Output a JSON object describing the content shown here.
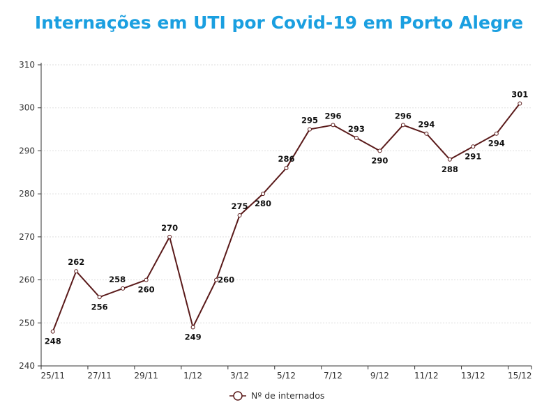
{
  "chart_data": {
    "type": "line",
    "title": "Internações em UTI por Covid-19 em Porto Alegre",
    "xlabel": "",
    "ylabel": "",
    "categories": [
      "25/11",
      "26/11",
      "27/11",
      "28/11",
      "29/11",
      "30/11",
      "1/12",
      "2/12",
      "3/12",
      "4/12",
      "5/12",
      "6/12",
      "7/12",
      "8/12",
      "9/12",
      "10/12",
      "11/12",
      "12/12",
      "13/12",
      "14/12",
      "15/12"
    ],
    "x_tick_labels": [
      "25/11",
      "27/11",
      "29/11",
      "1/12",
      "3/12",
      "5/12",
      "7/12",
      "9/12",
      "11/12",
      "13/12",
      "15/12"
    ],
    "ylim": [
      240,
      310
    ],
    "y_ticks": [
      240,
      250,
      260,
      270,
      280,
      290,
      300,
      310
    ],
    "grid": "horizontal dotted",
    "legend_placement": "bottom",
    "series": [
      {
        "name": "Nº de internados",
        "color": "#5a1a1a",
        "values": [
          248,
          262,
          256,
          258,
          260,
          270,
          249,
          260,
          275,
          280,
          286,
          295,
          296,
          293,
          290,
          296,
          294,
          288,
          291,
          294,
          301
        ]
      }
    ],
    "data_labels": true
  }
}
